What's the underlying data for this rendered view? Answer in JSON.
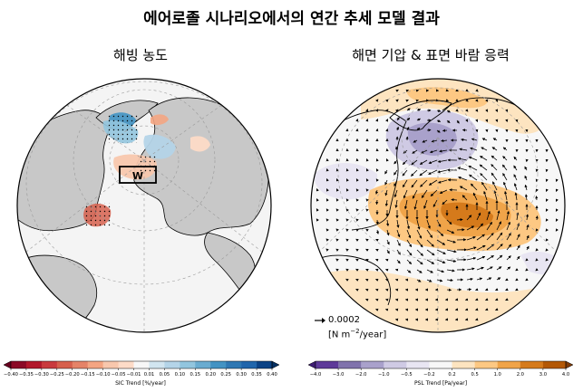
{
  "title": "에어로졸 시나리오에서의 연간 추세 모델 결과",
  "panels": {
    "left": {
      "subtitle": "해빙 농도",
      "box_label": "W",
      "colorbar": {
        "label": "SIC Trend [%/year]",
        "ticks": [
          "−0.40",
          "−0.35",
          "−0.30",
          "−0.25",
          "−0.20",
          "−0.15",
          "−0.10",
          "−0.05",
          "−0.01",
          "0.01",
          "0.05",
          "0.10",
          "0.15",
          "0.20",
          "0.25",
          "0.30",
          "0.35",
          "0.40"
        ],
        "colors": [
          "#67001f",
          "#8b0a26",
          "#b2182b",
          "#c93a3e",
          "#d6604d",
          "#e58368",
          "#f4a582",
          "#f8c7ad",
          "#fddbc7",
          "#f7f7f7",
          "#d1e5f0",
          "#b4d4e8",
          "#92c5de",
          "#6aacd0",
          "#4393c3",
          "#2f78b3",
          "#2166ac",
          "#0b4285",
          "#053061"
        ]
      }
    },
    "right": {
      "subtitle": "해면 기압 & 표면 바람 응력",
      "reference_vector": {
        "value": "0.0002",
        "units_prefix": "[N m",
        "units_exp": "−2",
        "units_suffix": "/year]"
      },
      "colorbar": {
        "label": "PSL Trend [Pa/year]",
        "ticks": [
          "−4.0",
          "−3.0",
          "−2.0",
          "−1.0",
          "−0.5",
          "−0.2",
          "0.2",
          "0.5",
          "1.0",
          "2.0",
          "3.0",
          "4.0"
        ],
        "colors": [
          "#3f1d74",
          "#5e3a99",
          "#8073ac",
          "#a9a1cb",
          "#cfcae4",
          "#e8e5f2",
          "#f7f7f7",
          "#fde4c0",
          "#fdc883",
          "#f0a449",
          "#d57a1b",
          "#b35806",
          "#7f3b08"
        ]
      }
    }
  }
}
